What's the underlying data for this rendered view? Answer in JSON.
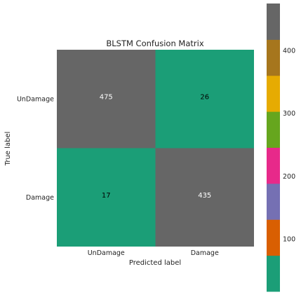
{
  "chart_data": {
    "type": "heatmap",
    "title": "BLSTM Confusion Matrix",
    "xlabel": "Predicted label",
    "ylabel": "True label",
    "x_categories": [
      "UnDamage",
      "Damage"
    ],
    "y_categories": [
      "UnDamage",
      "Damage"
    ],
    "values": [
      [
        475,
        26
      ],
      [
        17,
        435
      ]
    ],
    "colormap": "Dark2",
    "colorbar": {
      "range": [
        17,
        475
      ],
      "ticks": [
        100,
        200,
        300,
        400
      ],
      "tick_labels": [
        "100",
        "200",
        "300",
        "400"
      ],
      "colors": [
        "#1b9e77",
        "#d95f02",
        "#7570b3",
        "#e7298a",
        "#66a61e",
        "#e6ab02",
        "#a6761d",
        "#666666"
      ]
    },
    "grid": false
  }
}
